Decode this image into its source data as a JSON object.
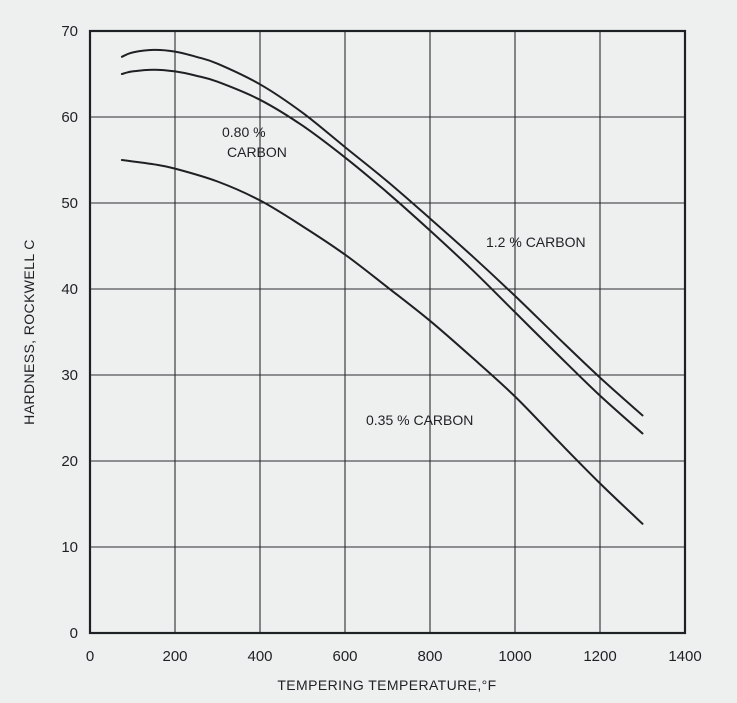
{
  "chart_data": {
    "type": "line",
    "xlabel": "TEMPERING TEMPERATURE,°F",
    "ylabel": "HARDNESS, ROCKWELL C",
    "xlim": [
      0,
      1400
    ],
    "ylim": [
      0,
      70
    ],
    "xticks": [
      0,
      200,
      400,
      600,
      800,
      1000,
      1200,
      1400
    ],
    "yticks": [
      0,
      10,
      20,
      30,
      40,
      50,
      60,
      70
    ],
    "grid": true,
    "series": [
      {
        "name": "1.2 % CARBON",
        "x": [
          75,
          100,
          150,
          200,
          250,
          300,
          400,
          500,
          600,
          700,
          800,
          900,
          1000,
          1100,
          1200,
          1300
        ],
        "y": [
          67,
          67.5,
          67.8,
          67.6,
          67,
          66.2,
          63.8,
          60.5,
          56.5,
          52.5,
          48.2,
          43.8,
          39.2,
          34.4,
          29.7,
          25.3
        ]
      },
      {
        "name": "0.80 % CARBON",
        "x": [
          75,
          100,
          150,
          200,
          250,
          300,
          400,
          500,
          600,
          700,
          800,
          900,
          1000,
          1100,
          1200,
          1300
        ],
        "y": [
          65,
          65.3,
          65.5,
          65.3,
          64.8,
          64.1,
          62,
          59,
          55.3,
          51.2,
          46.8,
          42.2,
          37.3,
          32.4,
          27.6,
          23.2
        ]
      },
      {
        "name": "0.35 % CARBON",
        "x": [
          75,
          150,
          200,
          300,
          400,
          500,
          600,
          700,
          800,
          900,
          1000,
          1100,
          1200,
          1300
        ],
        "y": [
          55,
          54.5,
          54,
          52.5,
          50.3,
          47.3,
          44,
          40.2,
          36.3,
          32,
          27.5,
          22.4,
          17.4,
          12.7
        ]
      }
    ],
    "annotations": [
      {
        "label_lines": [
          "0.80 %",
          "CARBON"
        ],
        "series": "0.80 % CARBON"
      },
      {
        "label_lines": [
          "1.2 % CARBON"
        ],
        "series": "1.2 % CARBON"
      },
      {
        "label_lines": [
          "0.35 % CARBON"
        ],
        "series": "0.35 % CARBON"
      }
    ]
  }
}
